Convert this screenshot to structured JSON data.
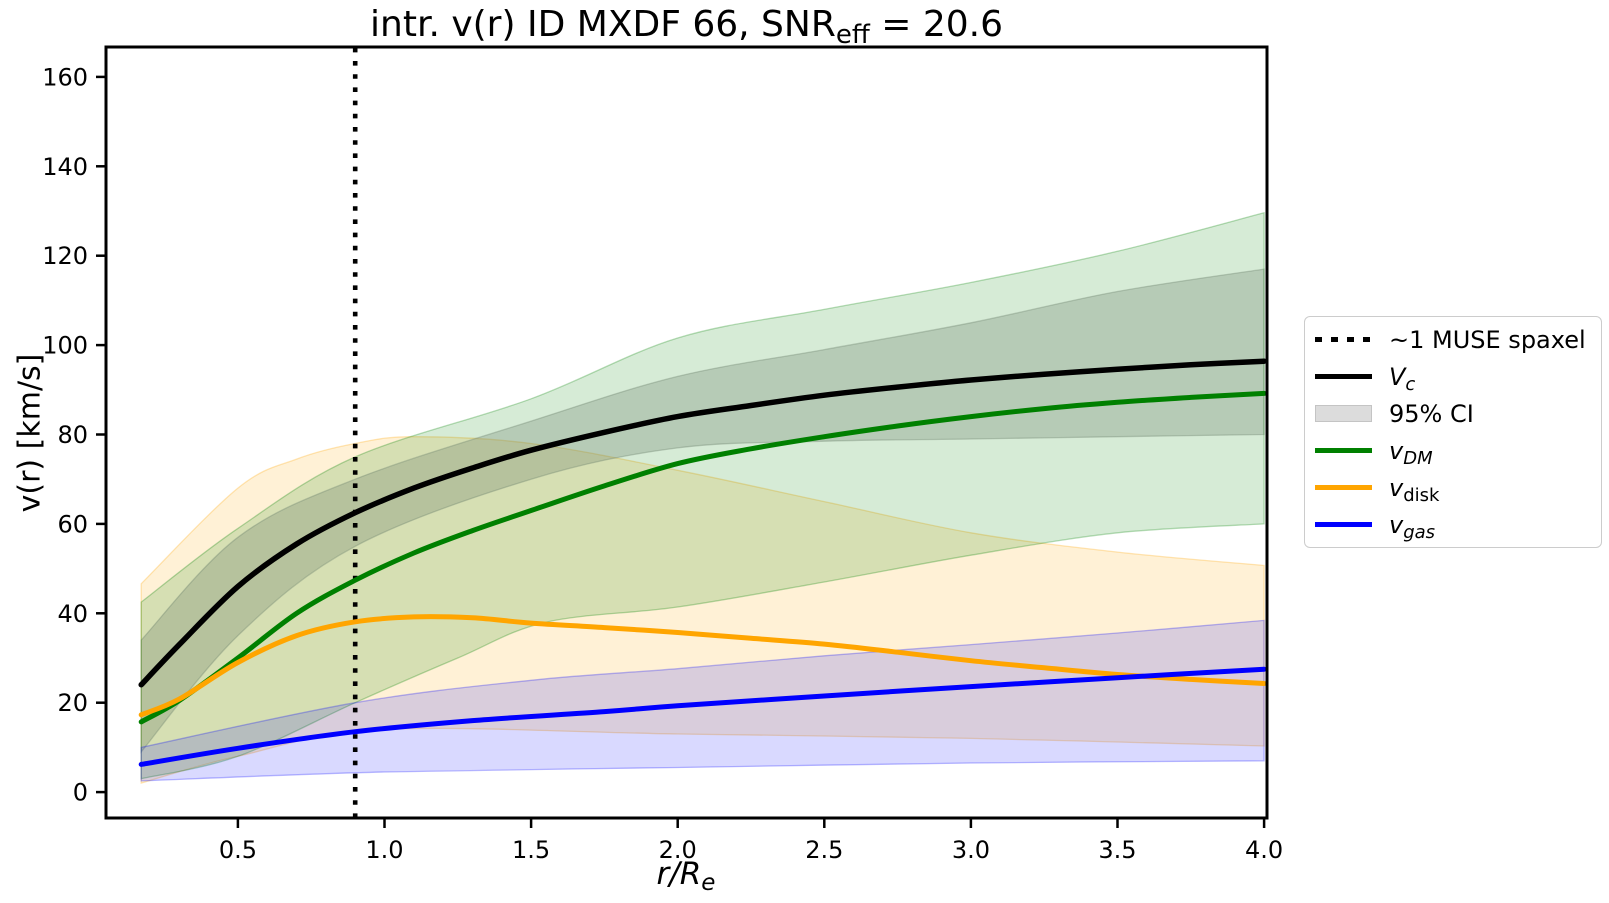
{
  "title": {
    "pre": "intr. v(r) ID MXDF 66, SNR",
    "sub": "eff",
    "post": " = 20.6"
  },
  "axes": {
    "ylabel": "v(r) [km/s]",
    "xlabel_main": "r/R",
    "xlabel_sub": "e",
    "x_ticks": [
      {
        "value": 0.5,
        "label": "0.5"
      },
      {
        "value": 1.0,
        "label": "1.0"
      },
      {
        "value": 1.5,
        "label": "1.5"
      },
      {
        "value": 2.0,
        "label": "2.0"
      },
      {
        "value": 2.5,
        "label": "2.5"
      },
      {
        "value": 3.0,
        "label": "3.0"
      },
      {
        "value": 3.5,
        "label": "3.5"
      },
      {
        "value": 4.0,
        "label": "4.0"
      }
    ],
    "y_ticks": [
      {
        "value": 0,
        "label": "0"
      },
      {
        "value": 20,
        "label": "20"
      },
      {
        "value": 40,
        "label": "40"
      },
      {
        "value": 60,
        "label": "60"
      },
      {
        "value": 80,
        "label": "80"
      },
      {
        "value": 100,
        "label": "100"
      },
      {
        "value": 120,
        "label": "120"
      },
      {
        "value": 140,
        "label": "140"
      },
      {
        "value": 160,
        "label": "160"
      }
    ]
  },
  "legend": {
    "entries": [
      {
        "label_main": "~1 MUSE spaxel",
        "label_sub": "",
        "sample": "dotted",
        "color": "#000000"
      },
      {
        "label_main": "V",
        "label_sub": "c",
        "sample": "line",
        "color": "#000000"
      },
      {
        "label_main": "95% CI",
        "label_sub": "",
        "sample": "patch",
        "color": "#808080"
      },
      {
        "label_main": "v",
        "label_sub": "DM",
        "sample": "line",
        "color": "#008000"
      },
      {
        "label_main": "v",
        "label_sub": "disk",
        "sample": "line",
        "color": "#FFA500"
      },
      {
        "label_main": "v",
        "label_sub": "gas",
        "sample": "line",
        "color": "#0000FF"
      }
    ]
  },
  "chart_data": {
    "type": "line",
    "title": "intr. v(r) ID MXDF 66, SNR_eff = 20.6",
    "xlabel": "r/R_e",
    "ylabel": "v(r) [km/s]",
    "xlim": [
      0.05,
      4.01
    ],
    "ylim": [
      -5.8,
      166.7
    ],
    "grid": false,
    "legend_position": "right-outside",
    "vline": {
      "x": 0.9,
      "style": "dotted",
      "color": "#000000",
      "label": "~1 MUSE spaxel"
    },
    "series": [
      {
        "name": "v_DM",
        "color": "#008000",
        "width": 5,
        "points": [
          [
            0.17,
            15.7
          ],
          [
            0.3,
            20.5
          ],
          [
            0.5,
            30
          ],
          [
            0.7,
            40
          ],
          [
            0.9,
            47.4
          ],
          [
            1.1,
            53.5
          ],
          [
            1.3,
            58.5
          ],
          [
            1.5,
            63
          ],
          [
            1.75,
            68.5
          ],
          [
            2.0,
            73.5
          ],
          [
            2.25,
            76.8
          ],
          [
            2.5,
            79.5
          ],
          [
            2.75,
            81.9
          ],
          [
            3.0,
            84
          ],
          [
            3.25,
            85.8
          ],
          [
            3.5,
            87.2
          ],
          [
            3.75,
            88.3
          ],
          [
            4.0,
            89.2
          ]
        ]
      },
      {
        "name": "v_disk",
        "color": "#FFA500",
        "width": 5,
        "points": [
          [
            0.17,
            17.3
          ],
          [
            0.3,
            20.8
          ],
          [
            0.5,
            29
          ],
          [
            0.7,
            35
          ],
          [
            0.9,
            38.1
          ],
          [
            1.1,
            39.2
          ],
          [
            1.3,
            39.0
          ],
          [
            1.5,
            37.8
          ],
          [
            1.75,
            36.8
          ],
          [
            2.0,
            35.7
          ],
          [
            2.25,
            34.4
          ],
          [
            2.5,
            33.1
          ],
          [
            2.75,
            31.3
          ],
          [
            3.0,
            29.4
          ],
          [
            3.25,
            27.8
          ],
          [
            3.5,
            26.3
          ],
          [
            3.75,
            25.2
          ],
          [
            4.0,
            24.3
          ]
        ]
      },
      {
        "name": "v_gas",
        "color": "#0000FF",
        "width": 5,
        "points": [
          [
            0.17,
            6.2
          ],
          [
            0.5,
            9.8
          ],
          [
            0.9,
            13.5
          ],
          [
            1.3,
            16
          ],
          [
            1.75,
            18
          ],
          [
            2.0,
            19.3
          ],
          [
            2.5,
            21.5
          ],
          [
            3.0,
            23.6
          ],
          [
            3.5,
            25.6
          ],
          [
            4.0,
            27.5
          ]
        ]
      },
      {
        "name": "V_c",
        "color": "#000000",
        "width": 5.5,
        "points": [
          [
            0.17,
            24
          ],
          [
            0.3,
            33
          ],
          [
            0.5,
            46
          ],
          [
            0.7,
            55.5
          ],
          [
            0.9,
            62.5
          ],
          [
            1.1,
            68
          ],
          [
            1.3,
            72.5
          ],
          [
            1.5,
            76.5
          ],
          [
            1.75,
            80.5
          ],
          [
            2.0,
            84
          ],
          [
            2.25,
            86.5
          ],
          [
            2.5,
            88.8
          ],
          [
            2.75,
            90.6
          ],
          [
            3.0,
            92.2
          ],
          [
            3.25,
            93.5
          ],
          [
            3.5,
            94.6
          ],
          [
            3.75,
            95.6
          ],
          [
            4.0,
            96.4
          ]
        ]
      }
    ],
    "bands": [
      {
        "name": "95% CI v_disk",
        "color": "#FFA500",
        "opacity": 0.16,
        "upper": [
          [
            0.17,
            46.6
          ],
          [
            0.5,
            68
          ],
          [
            0.7,
            74.5
          ],
          [
            0.9,
            78
          ],
          [
            1.1,
            79.5
          ],
          [
            1.5,
            78
          ],
          [
            2.0,
            72
          ],
          [
            2.5,
            65
          ],
          [
            3.0,
            58
          ],
          [
            3.5,
            53.7
          ],
          [
            4.0,
            50.7
          ]
        ],
        "lower": [
          [
            0.17,
            2
          ],
          [
            0.5,
            8
          ],
          [
            1.0,
            14
          ],
          [
            2.0,
            13
          ],
          [
            3.0,
            12
          ],
          [
            4.0,
            10.3
          ]
        ]
      },
      {
        "name": "95% CI V_c",
        "color": "#808080",
        "opacity": 0.3,
        "upper": [
          [
            0.17,
            34
          ],
          [
            0.5,
            57
          ],
          [
            0.9,
            70
          ],
          [
            1.5,
            83
          ],
          [
            2.0,
            93
          ],
          [
            2.5,
            99
          ],
          [
            3.0,
            105
          ],
          [
            3.5,
            112
          ],
          [
            4.0,
            117
          ]
        ],
        "lower": [
          [
            0.17,
            9
          ],
          [
            0.5,
            35
          ],
          [
            0.9,
            55
          ],
          [
            1.5,
            70
          ],
          [
            2.0,
            77
          ],
          [
            2.5,
            78.5
          ],
          [
            3.0,
            79
          ],
          [
            3.5,
            79.5
          ],
          [
            4.0,
            80
          ]
        ]
      },
      {
        "name": "95% CI v_DM",
        "color": "#008000",
        "opacity": 0.16,
        "upper": [
          [
            0.17,
            42.5
          ],
          [
            0.5,
            59
          ],
          [
            0.9,
            75
          ],
          [
            1.5,
            88
          ],
          [
            2.0,
            101.6
          ],
          [
            2.5,
            108
          ],
          [
            3.0,
            114
          ],
          [
            3.5,
            121
          ],
          [
            4.0,
            129.6
          ]
        ],
        "lower": [
          [
            0.17,
            3
          ],
          [
            0.5,
            8
          ],
          [
            0.9,
            20
          ],
          [
            1.25,
            30
          ],
          [
            1.55,
            38
          ],
          [
            2.0,
            41.4
          ],
          [
            2.5,
            47
          ],
          [
            3.0,
            53
          ],
          [
            3.5,
            58
          ],
          [
            4.0,
            60
          ]
        ]
      },
      {
        "name": "95% CI v_gas",
        "color": "#0000FF",
        "opacity": 0.15,
        "upper": [
          [
            0.17,
            10
          ],
          [
            0.9,
            20
          ],
          [
            1.5,
            25
          ],
          [
            2.0,
            27.6
          ],
          [
            2.5,
            30.5
          ],
          [
            3.0,
            33
          ],
          [
            3.5,
            35.6
          ],
          [
            4.0,
            38.4
          ]
        ],
        "lower": [
          [
            0.17,
            2.5
          ],
          [
            1.0,
            4.5
          ],
          [
            2.0,
            5.5
          ],
          [
            3.0,
            6.5
          ],
          [
            4.0,
            7
          ]
        ]
      }
    ]
  }
}
